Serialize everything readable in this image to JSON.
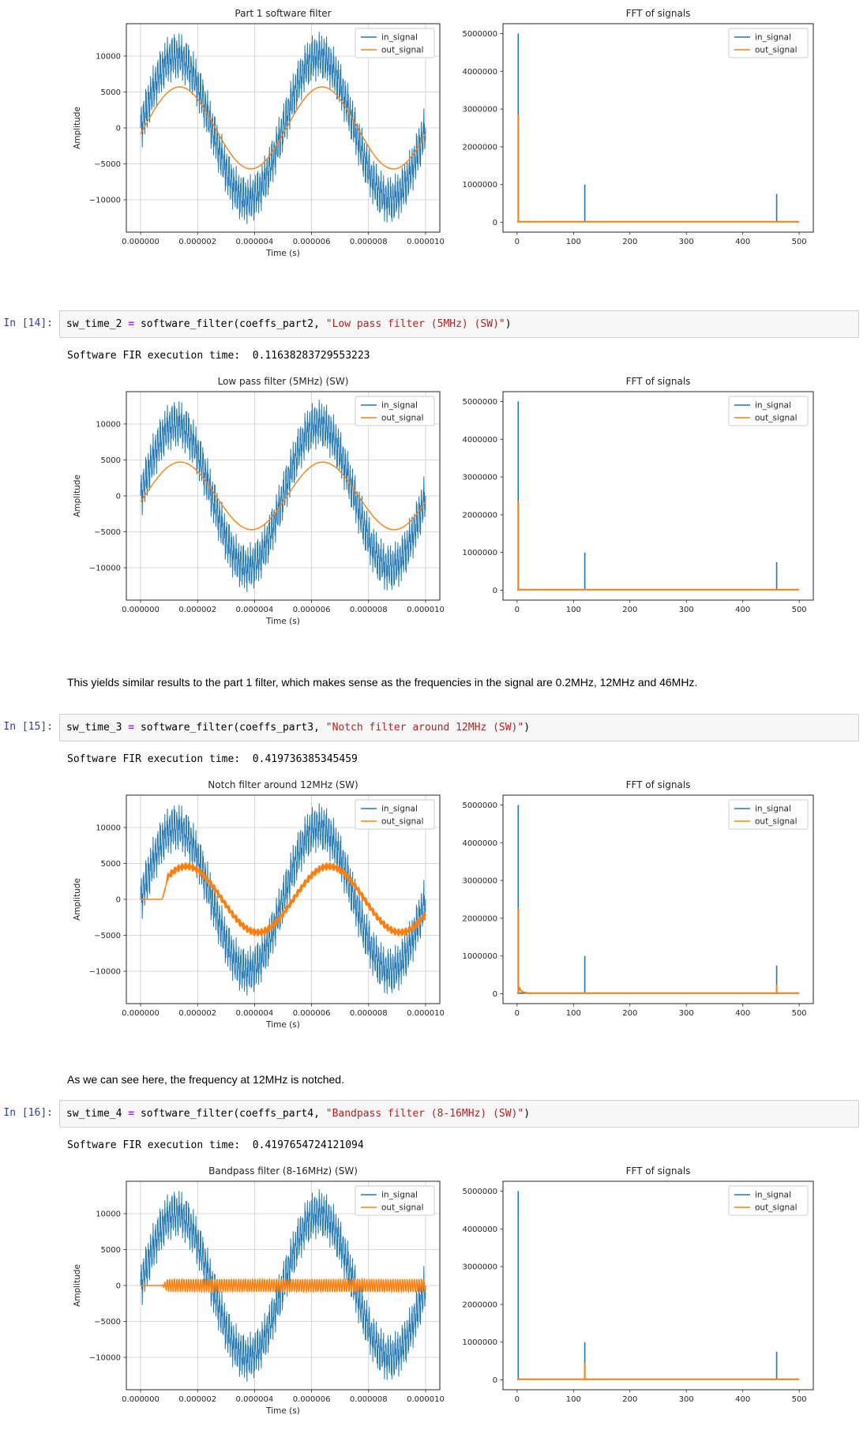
{
  "cells": {
    "c14": {
      "prompt": "In [14]:",
      "code": {
        "var": "sw_time_2",
        "op": " = ",
        "call": "software_filter(coeffs_part2, ",
        "str": "\"Low pass filter (5MHz) (SW)\"",
        "close": ")"
      },
      "output": "Software FIR execution time:  0.11638283729553223"
    },
    "c15": {
      "prompt": "In [15]:",
      "code": {
        "var": "sw_time_3",
        "op": " = ",
        "call": "software_filter(coeffs_part3, ",
        "str": "\"Notch filter around 12MHz (SW)\"",
        "close": ")"
      },
      "output": "Software FIR execution time:  0.419736385345459"
    },
    "c16": {
      "prompt": "In [16]:",
      "code": {
        "var": "sw_time_4",
        "op": " = ",
        "call": "software_filter(coeffs_part4, ",
        "str": "\"Bandpass filter (8-16MHz) (SW)\"",
        "close": ")"
      },
      "output": "Software FIR execution time:  0.4197654724121094"
    }
  },
  "markdown": {
    "md1": "This yields similar results to the part 1 filter, which makes sense as the frequencies in the signal are 0.2MHz, 12MHz and 46MHz.",
    "md2": "As we can see here, the frequency at 12MHz is notched."
  },
  "colors": {
    "in_signal": "#1f77b4",
    "out_signal": "#ff7f0e",
    "grid": "#cccccc",
    "spine": "#262626",
    "text": "#262626"
  },
  "chart_data": [
    {
      "type": "line",
      "time_plot": {
        "title": "Part 1 software filter",
        "xlabel": "Time (s)",
        "ylabel": "Amplitude",
        "xtick_labels": [
          "0.000000",
          "0.000002",
          "0.000004",
          "0.000006",
          "0.000008",
          "0.000010"
        ],
        "yticks": [
          -10000,
          -5000,
          0,
          5000,
          10000
        ],
        "ylim": [
          -14500,
          14500
        ],
        "grid": true,
        "legend": [
          "in_signal",
          "out_signal"
        ],
        "in_signal": {
          "samples": 1000,
          "delay": 0,
          "components": [
            {
              "cycles": 2,
              "amp": 10000,
              "phase": 0
            },
            {
              "cycles": 120,
              "amp": 2000,
              "phase": 0
            },
            {
              "cycles": 460,
              "amp": 1500,
              "phase": 0
            }
          ]
        },
        "out_signal": {
          "samples": 1000,
          "delay": 0,
          "components": [
            {
              "cycles": 2,
              "amp": 5700,
              "phase": -0.15
            }
          ]
        }
      },
      "fft_plot": {
        "title": "FFT of signals",
        "xticks": [
          0,
          100,
          200,
          300,
          400,
          500
        ],
        "yticks": [
          0,
          1000000,
          2000000,
          3000000,
          4000000,
          5000000
        ],
        "xlim": [
          -25,
          525
        ],
        "ylim": [
          -260000,
          5260000
        ],
        "grid": false,
        "legend": [
          "in_signal",
          "out_signal"
        ],
        "in_spikes": [
          [
            2,
            5000000
          ],
          [
            120,
            1000000
          ],
          [
            460,
            750000
          ]
        ],
        "out_spikes": [
          [
            2,
            2850000
          ]
        ],
        "out_tail": []
      }
    },
    {
      "type": "line",
      "time_plot": {
        "title": "Low pass filter (5MHz) (SW)",
        "xlabel": "Time (s)",
        "ylabel": "Amplitude",
        "xtick_labels": [
          "0.000000",
          "0.000002",
          "0.000004",
          "0.000006",
          "0.000008",
          "0.000010"
        ],
        "yticks": [
          -10000,
          -5000,
          0,
          5000,
          10000
        ],
        "ylim": [
          -14500,
          14500
        ],
        "grid": true,
        "legend": [
          "in_signal",
          "out_signal"
        ],
        "in_signal": {
          "samples": 1000,
          "delay": 0,
          "components": [
            {
              "cycles": 2,
              "amp": 10000,
              "phase": 0
            },
            {
              "cycles": 120,
              "amp": 2000,
              "phase": 0
            },
            {
              "cycles": 460,
              "amp": 1500,
              "phase": 0
            }
          ]
        },
        "out_signal": {
          "samples": 1000,
          "delay": 0,
          "components": [
            {
              "cycles": 2,
              "amp": 4700,
              "phase": -0.18
            }
          ]
        }
      },
      "fft_plot": {
        "title": "FFT of signals",
        "xticks": [
          0,
          100,
          200,
          300,
          400,
          500
        ],
        "yticks": [
          0,
          1000000,
          2000000,
          3000000,
          4000000,
          5000000
        ],
        "xlim": [
          -25,
          525
        ],
        "ylim": [
          -260000,
          5260000
        ],
        "grid": false,
        "legend": [
          "in_signal",
          "out_signal"
        ],
        "in_spikes": [
          [
            2,
            5000000
          ],
          [
            120,
            1000000
          ],
          [
            460,
            750000
          ]
        ],
        "out_spikes": [
          [
            2,
            2350000
          ]
        ],
        "out_tail": []
      }
    },
    {
      "type": "line",
      "time_plot": {
        "title": "Notch filter around 12MHz (SW)",
        "xlabel": "Time (s)",
        "ylabel": "Amplitude",
        "xtick_labels": [
          "0.000000",
          "0.000002",
          "0.000004",
          "0.000006",
          "0.000008",
          "0.000010"
        ],
        "yticks": [
          -10000,
          -5000,
          0,
          5000,
          10000
        ],
        "ylim": [
          -14500,
          14500
        ],
        "grid": true,
        "legend": [
          "in_signal",
          "out_signal"
        ],
        "in_signal": {
          "samples": 1000,
          "delay": 0,
          "components": [
            {
              "cycles": 2,
              "amp": 10000,
              "phase": 0
            },
            {
              "cycles": 120,
              "amp": 2000,
              "phase": 0
            },
            {
              "cycles": 460,
              "amp": 1500,
              "phase": 0
            }
          ]
        },
        "out_signal": {
          "samples": 1000,
          "delay": 0.075,
          "components": [
            {
              "cycles": 2,
              "amp": 4600,
              "phase": -0.45
            },
            {
              "cycles": 460,
              "amp": 550,
              "phase": 0
            }
          ]
        }
      },
      "fft_plot": {
        "title": "FFT of signals",
        "xticks": [
          0,
          100,
          200,
          300,
          400,
          500
        ],
        "yticks": [
          0,
          1000000,
          2000000,
          3000000,
          4000000,
          5000000
        ],
        "xlim": [
          -25,
          525
        ],
        "ylim": [
          -260000,
          5260000
        ],
        "grid": false,
        "legend": [
          "in_signal",
          "out_signal"
        ],
        "in_spikes": [
          [
            2,
            5000000
          ],
          [
            120,
            1000000
          ],
          [
            460,
            750000
          ]
        ],
        "out_spikes": [
          [
            2,
            2270000
          ],
          [
            460,
            250000
          ]
        ],
        "out_tail": [
          [
            4,
            160000
          ],
          [
            6,
            95000
          ],
          [
            9,
            55000
          ],
          [
            14,
            30000
          ],
          [
            22,
            18000
          ]
        ]
      }
    },
    {
      "type": "line",
      "time_plot": {
        "title": "Bandpass filter (8-16MHz) (SW)",
        "xlabel": "Time (s)",
        "ylabel": "Amplitude",
        "xtick_labels": [
          "0.000000",
          "0.000002",
          "0.000004",
          "0.000006",
          "0.000008",
          "0.000010"
        ],
        "yticks": [
          -10000,
          -5000,
          0,
          5000,
          10000
        ],
        "ylim": [
          -14500,
          14500
        ],
        "grid": true,
        "legend": [
          "in_signal",
          "out_signal"
        ],
        "in_signal": {
          "samples": 1000,
          "delay": 0,
          "components": [
            {
              "cycles": 2,
              "amp": 10000,
              "phase": 0
            },
            {
              "cycles": 120,
              "amp": 2000,
              "phase": 0
            },
            {
              "cycles": 460,
              "amp": 1500,
              "phase": 0
            }
          ]
        },
        "out_signal": {
          "samples": 1000,
          "delay": 0.075,
          "components": [
            {
              "cycles": 120,
              "amp": 900,
              "phase": 0
            }
          ]
        }
      },
      "fft_plot": {
        "title": "FFT of signals",
        "xticks": [
          0,
          100,
          200,
          300,
          400,
          500
        ],
        "yticks": [
          0,
          1000000,
          2000000,
          3000000,
          4000000,
          5000000
        ],
        "xlim": [
          -25,
          525
        ],
        "ylim": [
          -260000,
          5260000
        ],
        "grid": false,
        "legend": [
          "in_signal",
          "out_signal"
        ],
        "in_spikes": [
          [
            2,
            5000000
          ],
          [
            120,
            1000000
          ],
          [
            460,
            750000
          ]
        ],
        "out_spikes": [
          [
            2,
            60000
          ],
          [
            120,
            450000
          ]
        ],
        "out_tail": []
      }
    }
  ]
}
